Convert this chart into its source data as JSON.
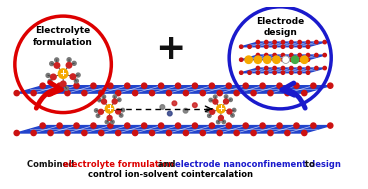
{
  "left_label": "Electrolyte\nformulation",
  "right_label": "Electrode\ndesign",
  "plus_sign": "+",
  "red_color": "#dd0000",
  "blue_color": "#1a1acc",
  "black_color": "#111111",
  "orange_color": "#f5a800",
  "white_color": "#ffffff",
  "bg_color": "#ffffff",
  "blue_layer": "#2244cc",
  "red_dot": "#cc1111",
  "gray_atom": "#888888",
  "dark_gray": "#555555",
  "green_atom": "#44aa44",
  "line1_parts": [
    {
      "text": "Combined ",
      "color": "#111111"
    },
    {
      "text": "electrolyte formulation",
      "color": "#dd0000"
    },
    {
      "text": " and ",
      "color": "#111111"
    },
    {
      "text": "electrode nanoconfinement design",
      "color": "#1a1acc"
    },
    {
      "text": " to",
      "color": "#111111"
    }
  ],
  "line2": "control ion-solvent cointercalation",
  "figsize": [
    3.68,
    1.89
  ],
  "dpi": 100
}
